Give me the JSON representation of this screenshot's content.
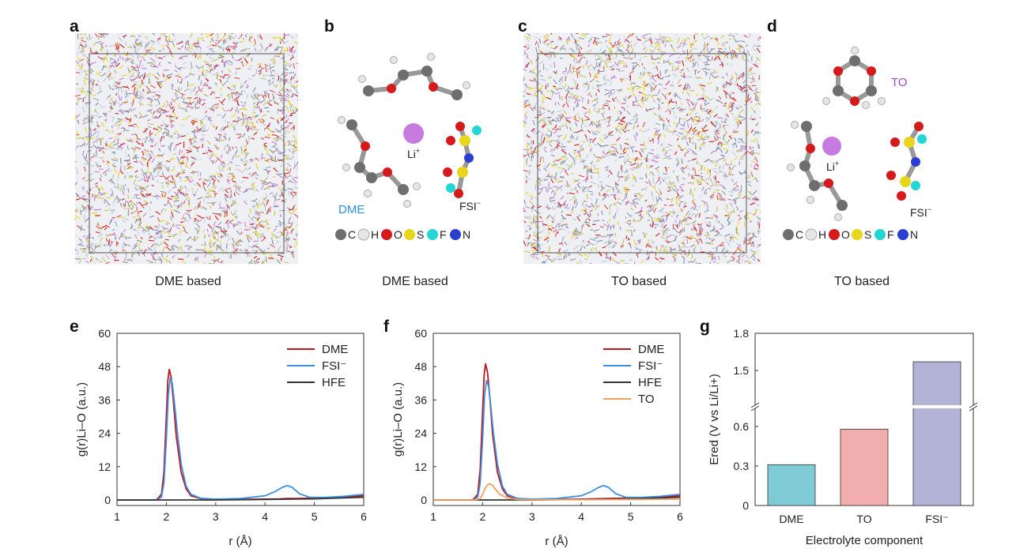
{
  "panels": {
    "a": {
      "letter": "a",
      "caption": "DME based"
    },
    "b": {
      "letter": "b",
      "caption": "DME based",
      "labels": {
        "li": "Li",
        "li_sup": "+",
        "solvent": "DME",
        "anion": "FSI",
        "anion_sup": "−"
      }
    },
    "c": {
      "letter": "c",
      "caption": "TO based"
    },
    "d": {
      "letter": "d",
      "caption": "TO based",
      "labels": {
        "li": "Li",
        "li_sup": "+",
        "solvent": "TO",
        "anion": "FSI",
        "anion_sup": "−"
      }
    },
    "e": {
      "letter": "e"
    },
    "f": {
      "letter": "f"
    },
    "g": {
      "letter": "g"
    }
  },
  "atom_legend": [
    {
      "symbol": "C",
      "color": "#6e6e6e"
    },
    {
      "symbol": "H",
      "color": "#e6e6e6"
    },
    {
      "symbol": "O",
      "color": "#d41a1a"
    },
    {
      "symbol": "S",
      "color": "#e8d51c"
    },
    {
      "symbol": "F",
      "color": "#22d6d6"
    },
    {
      "symbol": "N",
      "color": "#2a3fd0"
    }
  ],
  "colors": {
    "dme_label": "#2f8fd8",
    "to_label": "#9a4fc8",
    "li": "#c77be0"
  },
  "chart_data": [
    {
      "type": "line",
      "panel": "e",
      "xlabel": "r (Å)",
      "ylabel": "g(r)Li–O (a.u.)",
      "xlim": [
        1,
        6
      ],
      "ylim": [
        -2,
        60
      ],
      "xticks": [
        1,
        2,
        3,
        4,
        5,
        6
      ],
      "yticks": [
        0,
        12,
        24,
        36,
        48,
        60
      ],
      "legend_position": "top-right",
      "series": [
        {
          "name": "DME",
          "color": "#c0141c",
          "x": [
            1,
            1.8,
            1.9,
            1.95,
            2.0,
            2.03,
            2.06,
            2.1,
            2.15,
            2.2,
            2.3,
            2.4,
            2.5,
            2.7,
            3,
            3.5,
            4,
            4.3,
            4.45,
            4.6,
            4.8,
            5,
            5.5,
            6
          ],
          "y": [
            0,
            0,
            2,
            10,
            30,
            43,
            47,
            44,
            34,
            23,
            10,
            4,
            1.5,
            0.5,
            0.2,
            0.2,
            0.3,
            0.4,
            0.5,
            0.5,
            0.6,
            0.7,
            1,
            1.5
          ]
        },
        {
          "name": "FSI⁻",
          "color": "#3b8fe0",
          "x": [
            1,
            1.8,
            1.9,
            1.95,
            2.0,
            2.04,
            2.08,
            2.12,
            2.17,
            2.22,
            2.3,
            2.4,
            2.5,
            2.7,
            3,
            3.5,
            4,
            4.2,
            4.35,
            4.45,
            4.55,
            4.7,
            4.9,
            5.2,
            5.6,
            6
          ],
          "y": [
            0,
            0,
            1,
            6,
            22,
            38,
            44,
            42,
            34,
            25,
            13,
            5,
            2,
            0.6,
            0.3,
            0.5,
            1.5,
            3,
            4.5,
            5.2,
            4.5,
            2.2,
            1,
            0.9,
            1.3,
            2
          ]
        },
        {
          "name": "HFE",
          "color": "#333333",
          "x": [
            1,
            2,
            3,
            4,
            5,
            6
          ],
          "y": [
            0,
            0,
            0,
            0.2,
            0.4,
            1
          ]
        }
      ]
    },
    {
      "type": "line",
      "panel": "f",
      "xlabel": "r (Å)",
      "ylabel": "g(r)Li–O (a.u.)",
      "xlim": [
        1,
        6
      ],
      "ylim": [
        -2,
        60
      ],
      "xticks": [
        1,
        2,
        3,
        4,
        5,
        6
      ],
      "yticks": [
        0,
        12,
        24,
        36,
        48,
        60
      ],
      "legend_position": "top-right",
      "series": [
        {
          "name": "DME",
          "color": "#c0141c",
          "x": [
            1,
            1.8,
            1.9,
            1.95,
            2.0,
            2.03,
            2.06,
            2.1,
            2.15,
            2.2,
            2.3,
            2.4,
            2.5,
            2.7,
            3,
            3.5,
            4,
            4.5,
            5,
            5.5,
            6
          ],
          "y": [
            0,
            0,
            2,
            11,
            32,
            45,
            49,
            46,
            36,
            24,
            10,
            4,
            1.5,
            0.5,
            0.2,
            0.2,
            0.3,
            0.5,
            0.7,
            1,
            1.5
          ]
        },
        {
          "name": "FSI⁻",
          "color": "#3b8fe0",
          "x": [
            1,
            1.8,
            1.9,
            1.95,
            2.0,
            2.04,
            2.08,
            2.12,
            2.17,
            2.22,
            2.3,
            2.4,
            2.5,
            2.7,
            3,
            3.5,
            4,
            4.2,
            4.35,
            4.45,
            4.55,
            4.7,
            4.9,
            5.2,
            5.6,
            6
          ],
          "y": [
            0,
            0,
            1,
            6,
            22,
            38,
            43,
            41,
            33,
            24,
            13,
            5,
            2,
            0.6,
            0.3,
            0.5,
            1.5,
            3,
            4.5,
            5.2,
            4.5,
            2.2,
            1,
            0.9,
            1.3,
            2
          ]
        },
        {
          "name": "HFE",
          "color": "#333333",
          "x": [
            1,
            2,
            3,
            4,
            5,
            6
          ],
          "y": [
            0,
            0,
            0,
            0.2,
            0.4,
            1
          ]
        },
        {
          "name": "TO",
          "color": "#f0a060",
          "x": [
            1,
            1.85,
            1.95,
            2.0,
            2.05,
            2.1,
            2.15,
            2.2,
            2.25,
            2.35,
            2.5,
            2.7,
            3,
            4,
            5,
            6
          ],
          "y": [
            0,
            0,
            0.5,
            2,
            4.2,
            5.5,
            5.8,
            5.3,
            4,
            2,
            0.7,
            0.2,
            0.1,
            0.1,
            0.2,
            0.3
          ]
        }
      ]
    },
    {
      "type": "bar",
      "panel": "g",
      "xlabel": "Electrolyte component",
      "ylabel": "Ered (V vs Li/Li+)",
      "categories": [
        "DME",
        "TO",
        "FSI⁻"
      ],
      "values": [
        0.31,
        0.58,
        1.57
      ],
      "colors": [
        "#7ecbd6",
        "#f2aeae",
        "#b3b3d8"
      ],
      "axis_break": {
        "lower": [
          0,
          0.75
        ],
        "upper": [
          1.2,
          1.8
        ]
      },
      "yticks_lower": [
        0,
        0.3,
        0.6
      ],
      "yticks_upper": [
        1.5,
        1.8
      ]
    }
  ]
}
